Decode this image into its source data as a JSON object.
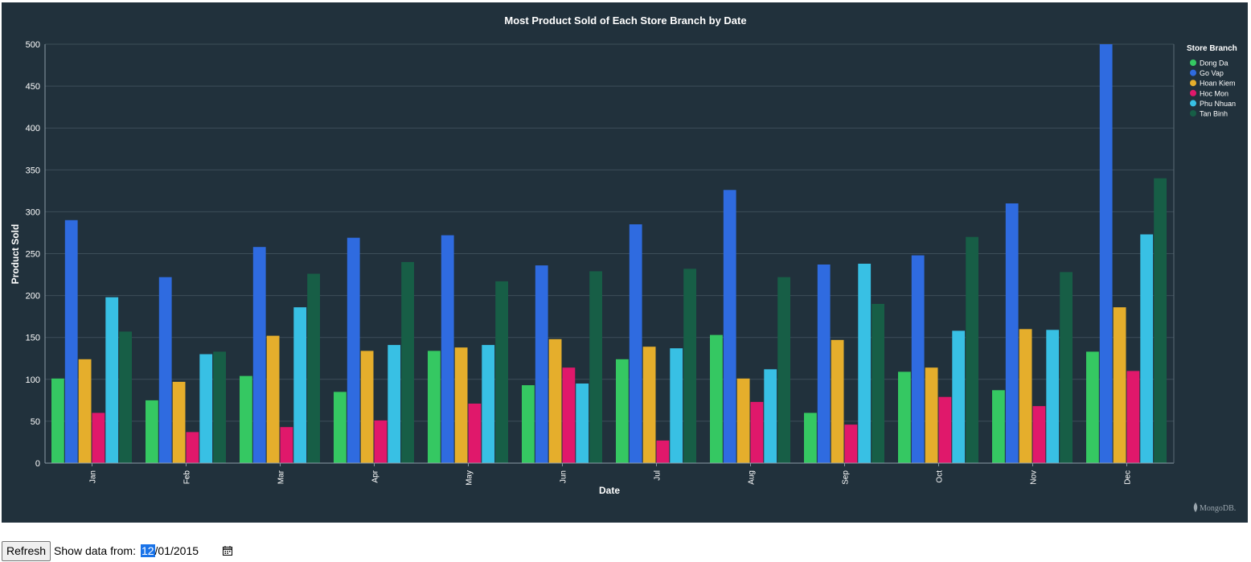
{
  "chart_data": {
    "type": "bar",
    "title": "Most Product Sold of Each Store Branch by Date",
    "xlabel": "Date",
    "ylabel": "Product Sold",
    "ylim": [
      0,
      500
    ],
    "yticks": [
      0,
      50,
      100,
      150,
      200,
      250,
      300,
      350,
      400,
      450,
      500
    ],
    "grid": true,
    "legend_title": "Store Branch",
    "legend_position": "right",
    "categories": [
      "Jan",
      "Feb",
      "Mar",
      "Apr",
      "May",
      "Jun",
      "Jul",
      "Aug",
      "Sep",
      "Oct",
      "Nov",
      "Dec"
    ],
    "series": [
      {
        "name": "Dong Da",
        "color": "#35c862",
        "values": [
          101,
          75,
          104,
          85,
          134,
          93,
          124,
          153,
          60,
          109,
          87,
          133
        ]
      },
      {
        "name": "Go Vap",
        "color": "#2f6be0",
        "values": [
          290,
          222,
          258,
          269,
          272,
          236,
          285,
          326,
          237,
          248,
          310,
          500
        ]
      },
      {
        "name": "Hoan Kiem",
        "color": "#e5ae2c",
        "values": [
          124,
          97,
          152,
          134,
          138,
          148,
          139,
          101,
          147,
          114,
          160,
          186
        ]
      },
      {
        "name": "Hoc Mon",
        "color": "#e0186b",
        "values": [
          60,
          37,
          43,
          51,
          71,
          114,
          27,
          73,
          46,
          79,
          68,
          110
        ]
      },
      {
        "name": "Phu Nhuan",
        "color": "#38c0e4",
        "values": [
          198,
          130,
          186,
          141,
          141,
          95,
          137,
          112,
          238,
          158,
          159,
          273
        ]
      },
      {
        "name": "Tan Binh",
        "color": "#175e46",
        "values": [
          157,
          133,
          226,
          240,
          217,
          229,
          232,
          222,
          190,
          270,
          228,
          340
        ]
      }
    ]
  },
  "watermark": "MongoDB.",
  "controls": {
    "refresh_label": "Refresh",
    "date_label": "Show data from:",
    "date_month": "12",
    "date_rest": "/01/2015"
  }
}
